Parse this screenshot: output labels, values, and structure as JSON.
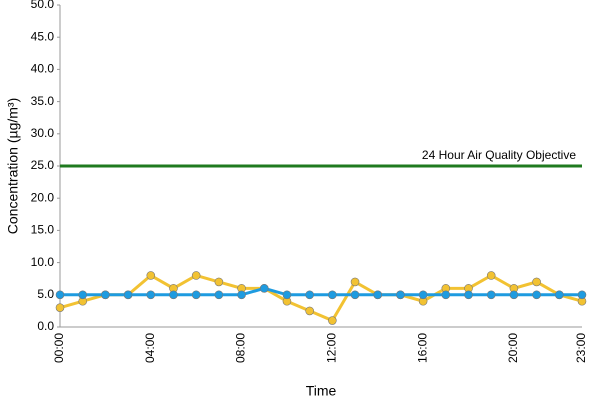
{
  "chart_data": {
    "type": "line",
    "x_label": "Time",
    "y_label": "Concentration (µg/m³)",
    "categories": [
      "00:00",
      null,
      null,
      null,
      "04:00",
      null,
      null,
      null,
      "08:00",
      null,
      null,
      null,
      "12:00",
      null,
      null,
      null,
      "16:00",
      null,
      null,
      null,
      "20:00",
      null,
      null,
      "23:00"
    ],
    "series": [
      {
        "color": "#f2c232",
        "values": [
          3,
          4,
          5,
          5,
          8,
          6,
          8,
          7,
          6,
          6,
          4,
          2.5,
          1,
          7,
          5,
          5,
          4,
          6,
          6,
          8,
          6,
          7,
          5,
          4
        ]
      },
      {
        "color": "#1e9be0",
        "values": [
          5,
          5,
          5,
          5,
          5,
          5,
          5,
          5,
          5,
          6,
          5,
          5,
          5,
          5,
          5,
          5,
          5,
          5,
          5,
          5,
          5,
          5,
          5,
          5
        ]
      }
    ],
    "objective": {
      "value": 25,
      "label": "24 Hour Air Quality Objective",
      "color": "#1f7a1f"
    },
    "ylim": [
      0,
      50
    ],
    "yticks": [
      {
        "value": 0,
        "label": "0.0"
      },
      {
        "value": 5,
        "label": "5.0"
      },
      {
        "value": 10,
        "label": "10.0"
      },
      {
        "value": 15,
        "label": "15.0"
      },
      {
        "value": 20,
        "label": "20.0"
      },
      {
        "value": 25,
        "label": "25.0"
      },
      {
        "value": 30,
        "label": "30.0"
      },
      {
        "value": 35,
        "label": "35.0"
      },
      {
        "value": 40,
        "label": "40.0"
      },
      {
        "value": 45,
        "label": "45.0"
      },
      {
        "value": 50,
        "label": "50.0"
      }
    ],
    "grid": false
  }
}
